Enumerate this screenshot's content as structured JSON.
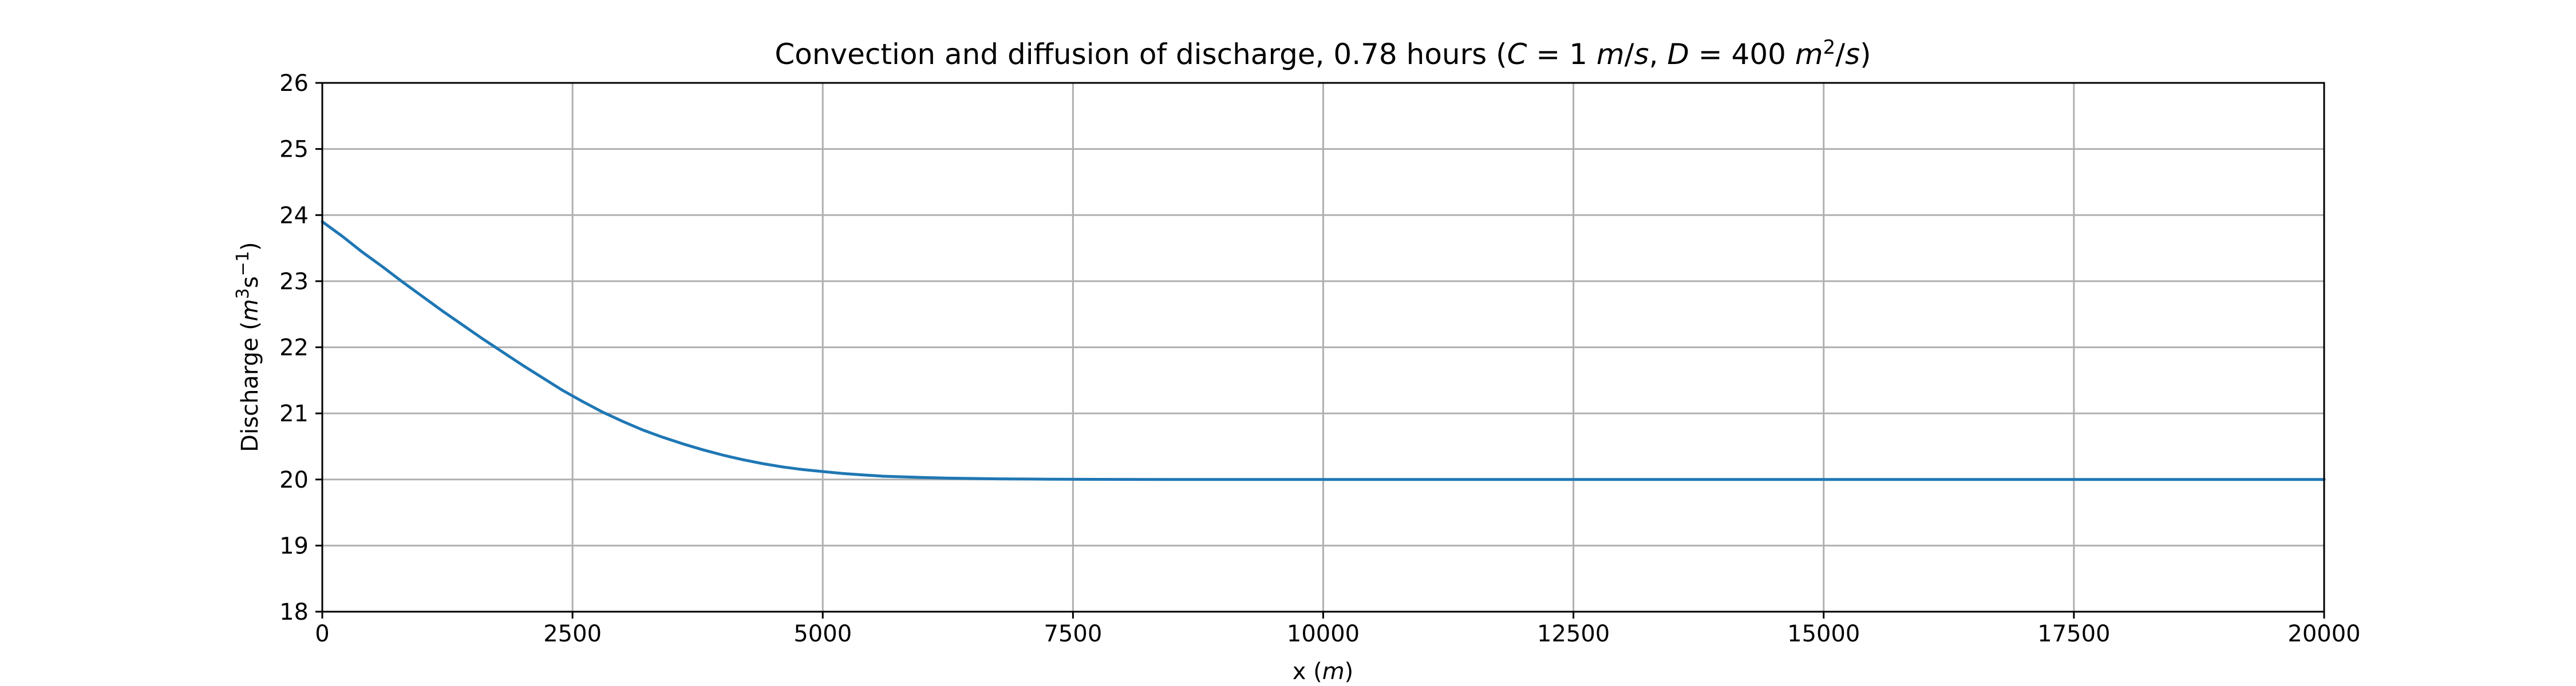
{
  "chart_data": {
    "type": "line",
    "title_parts": {
      "prefix": "Convection and diffusion of discharge, 0.78 hours (",
      "c_symbol": "C",
      "c_value": " = 1 ",
      "c_unit_m": "m",
      "c_unit_rest": "/",
      "c_unit_s": "s",
      "separator": ", ",
      "d_symbol": "D",
      "d_value": " = 400 ",
      "d_unit_m": "m",
      "d_unit_exp": "2",
      "d_unit_rest": "/",
      "d_unit_s": "s",
      "suffix": ")"
    },
    "xlabel_parts": {
      "prefix": "x (",
      "unit": "m",
      "suffix": ")"
    },
    "ylabel_parts": {
      "prefix": "Discharge (",
      "m": "m",
      "exp3": "3",
      "s": "s",
      "expneg": "−1",
      "suffix": ")"
    },
    "xlim": [
      0,
      20000
    ],
    "ylim": [
      18,
      26
    ],
    "xticks": [
      0,
      2500,
      5000,
      7500,
      10000,
      12500,
      15000,
      17500,
      20000
    ],
    "xtick_labels": [
      "0",
      "2500",
      "5000",
      "7500",
      "10000",
      "12500",
      "15000",
      "17500",
      "20000"
    ],
    "yticks": [
      18,
      19,
      20,
      21,
      22,
      23,
      24,
      25,
      26
    ],
    "ytick_labels": [
      "18",
      "19",
      "20",
      "21",
      "22",
      "23",
      "24",
      "25",
      "26"
    ],
    "grid": true,
    "series": [
      {
        "color": "#1f77b4",
        "x": [
          0,
          200,
          400,
          600,
          800,
          1000,
          1200,
          1400,
          1600,
          1800,
          2000,
          2200,
          2400,
          2600,
          2800,
          3000,
          3200,
          3400,
          3600,
          3800,
          4000,
          4200,
          4400,
          4600,
          4800,
          5000,
          5200,
          5400,
          5600,
          5800,
          6000,
          6250,
          6500,
          6750,
          7000,
          7250,
          7500,
          8000,
          8500,
          9000,
          10000,
          12500,
          15000,
          17500,
          20000
        ],
        "y": [
          23.9,
          23.68,
          23.44,
          23.22,
          22.99,
          22.77,
          22.55,
          22.34,
          22.13,
          21.93,
          21.73,
          21.54,
          21.35,
          21.18,
          21.02,
          20.88,
          20.75,
          20.64,
          20.54,
          20.45,
          20.37,
          20.3,
          20.24,
          20.19,
          20.15,
          20.12,
          20.09,
          20.07,
          20.05,
          20.04,
          20.03,
          20.02,
          20.015,
          20.01,
          20.007,
          20.005,
          20.003,
          20.001,
          20.0,
          20.0,
          20.0,
          20.0,
          20.0,
          20.0,
          20.0
        ]
      }
    ]
  }
}
